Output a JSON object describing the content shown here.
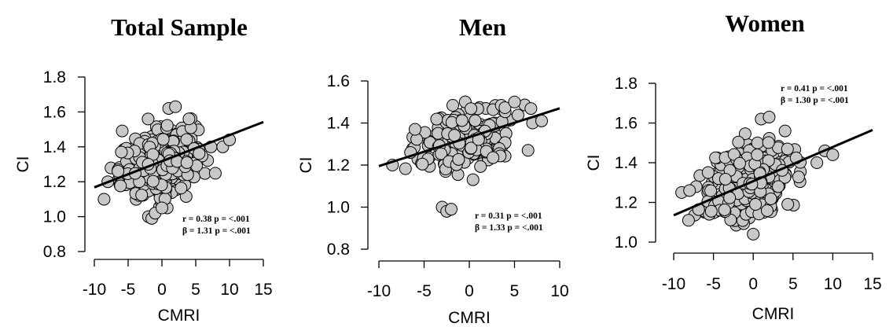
{
  "chart_data": [
    {
      "type": "scatter",
      "title": "Total Sample",
      "xlabel": "CMRI",
      "ylabel": "CI",
      "xlim": [
        -10,
        15
      ],
      "ylim": [
        0.8,
        1.8
      ],
      "xticks": [
        "-10",
        "-5",
        "0",
        "5",
        "10",
        "15"
      ],
      "yticks": [
        "0.8",
        "1.0",
        "1.2",
        "1.4",
        "1.6",
        "1.8"
      ],
      "stats": [
        "r = 0.38 p = <.001",
        "β = 1.31 p = <.001"
      ],
      "regression": {
        "x": [
          -10,
          15
        ],
        "y": [
          1.168,
          1.542
        ]
      },
      "cluster": {
        "n": 380,
        "xmean": -0.5,
        "xsd": 2.8,
        "ymean": 1.31,
        "ysd": 0.09,
        "slope": 0.012,
        "xmin": -9,
        "xmax": 11,
        "ymin": 1.0,
        "ymax": 1.62
      },
      "outliers": [
        [
          -8,
          1.2
        ],
        [
          -6.5,
          1.26
        ],
        [
          -6,
          1.37
        ],
        [
          1,
          1.62
        ],
        [
          2,
          1.63
        ],
        [
          4,
          1.56
        ],
        [
          9,
          1.4
        ],
        [
          10,
          1.44
        ],
        [
          -2,
          1.0
        ],
        [
          -1.5,
          0.99
        ],
        [
          -1,
          1.02
        ],
        [
          0,
          1.05
        ]
      ]
    },
    {
      "type": "scatter",
      "title": "Men",
      "xlabel": "CMRI",
      "ylabel": "CI",
      "xlim": [
        -10,
        10
      ],
      "ylim": [
        0.8,
        1.6
      ],
      "xticks": [
        "-10",
        "-5",
        "0",
        "5",
        "10"
      ],
      "yticks": [
        "0.8",
        "1.0",
        "1.2",
        "1.4",
        "1.6"
      ],
      "stats": [
        "r = 0.31 p = <.001",
        "β = 1.33 p = <.001"
      ],
      "regression": {
        "x": [
          -10,
          10
        ],
        "y": [
          1.195,
          1.47
        ]
      },
      "cluster": {
        "n": 200,
        "xmean": -0.5,
        "xsd": 2.6,
        "ymean": 1.33,
        "ysd": 0.08,
        "slope": 0.01,
        "xmin": -9,
        "xmax": 8.5,
        "ymin": 1.1,
        "ymax": 1.54
      },
      "outliers": [
        [
          -8.5,
          1.2
        ],
        [
          -6.5,
          1.26
        ],
        [
          -6,
          1.37
        ],
        [
          -3,
          1.0
        ],
        [
          -2.5,
          0.98
        ],
        [
          -2,
          0.99
        ],
        [
          5,
          1.5
        ],
        [
          6.5,
          1.27
        ],
        [
          7,
          1.4
        ],
        [
          8,
          1.41
        ]
      ]
    },
    {
      "type": "scatter",
      "title": "Women",
      "xlabel": "CMRI",
      "ylabel": "CI",
      "xlim": [
        -10,
        15
      ],
      "ylim": [
        1.0,
        1.8
      ],
      "xticks": [
        "-10",
        "-5",
        "0",
        "5",
        "10",
        "15"
      ],
      "yticks": [
        "1.0",
        "1.2",
        "1.4",
        "1.6",
        "1.8"
      ],
      "stats": [
        "r = 0.41 p = <.001",
        "β = 1.30 p = <.001"
      ],
      "regression": {
        "x": [
          -10,
          15
        ],
        "y": [
          1.135,
          1.565
        ]
      },
      "cluster": {
        "n": 300,
        "xmean": -0.5,
        "xsd": 2.9,
        "ymean": 1.29,
        "ysd": 0.1,
        "slope": 0.014,
        "xmin": -9,
        "xmax": 10,
        "ymin": 1.04,
        "ymax": 1.62
      },
      "outliers": [
        [
          -9,
          1.25
        ],
        [
          -8,
          1.26
        ],
        [
          1,
          1.62
        ],
        [
          2,
          1.63
        ],
        [
          4,
          1.56
        ],
        [
          8,
          1.4
        ],
        [
          9,
          1.46
        ],
        [
          10,
          1.44
        ],
        [
          0,
          1.04
        ]
      ]
    }
  ]
}
